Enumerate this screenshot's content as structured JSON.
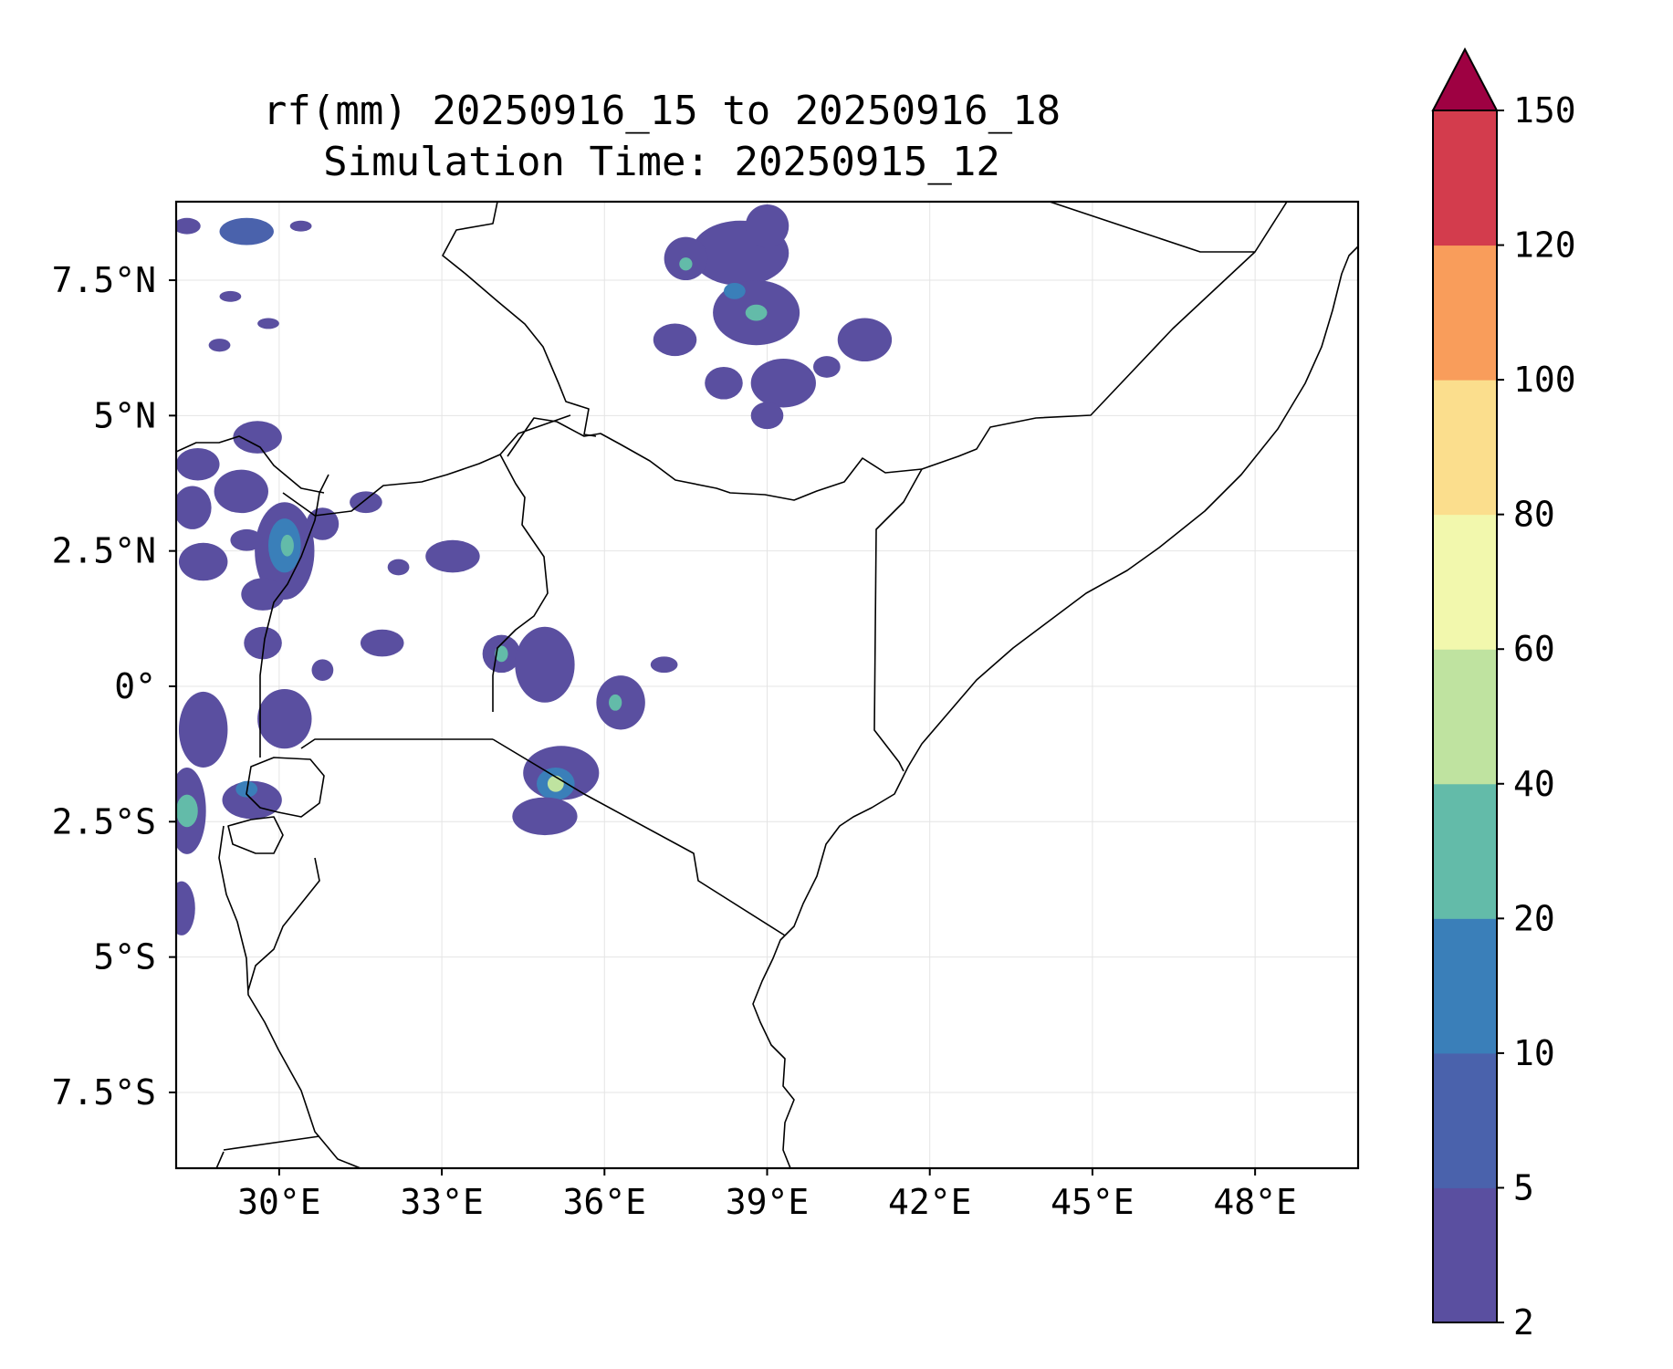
{
  "title_line1": "rf(mm) 20250916_15 to 20250916_18",
  "title_line2": "Simulation Time: 20250915_12",
  "map_extent": {
    "lon_min": 28.1,
    "lon_max": 49.9,
    "lat_min": -8.9,
    "lat_max": 8.95
  },
  "x_ticks": [
    {
      "lon": 30,
      "label": "30°E"
    },
    {
      "lon": 33,
      "label": "33°E"
    },
    {
      "lon": 36,
      "label": "36°E"
    },
    {
      "lon": 39,
      "label": "39°E"
    },
    {
      "lon": 42,
      "label": "42°E"
    },
    {
      "lon": 45,
      "label": "45°E"
    },
    {
      "lon": 48,
      "label": "48°E"
    }
  ],
  "y_ticks": [
    {
      "lat": 7.5,
      "label": "7.5°N"
    },
    {
      "lat": 5,
      "label": "5°N"
    },
    {
      "lat": 2.5,
      "label": "2.5°N"
    },
    {
      "lat": 0,
      "label": "0°"
    },
    {
      "lat": -2.5,
      "label": "2.5°S"
    },
    {
      "lat": -5,
      "label": "5°S"
    },
    {
      "lat": -7.5,
      "label": "7.5°S"
    }
  ],
  "colorbar": {
    "levels": [
      "2",
      "5",
      "10",
      "20",
      "40",
      "60",
      "80",
      "100",
      "120",
      "150"
    ],
    "colors": [
      "#5a4fa0",
      "#4a62ac",
      "#3a7fb9",
      "#63bba9",
      "#bfe3a0",
      "#f2f8ad",
      "#fbde8d",
      "#f99d5b",
      "#d33c4d"
    ],
    "extend_color": "#9e0142"
  },
  "rain_blobs": [
    {
      "lon": 29.4,
      "lat": 8.4,
      "rx": 0.5,
      "ry": 0.25,
      "level": 1
    },
    {
      "lon": 28.3,
      "lat": 8.5,
      "rx": 0.25,
      "ry": 0.15,
      "level": 0
    },
    {
      "lon": 30.4,
      "lat": 8.5,
      "rx": 0.2,
      "ry": 0.1,
      "level": 0
    },
    {
      "lon": 29.1,
      "lat": 7.2,
      "rx": 0.2,
      "ry": 0.1,
      "level": 0
    },
    {
      "lon": 29.8,
      "lat": 6.7,
      "rx": 0.2,
      "ry": 0.1,
      "level": 0
    },
    {
      "lon": 28.9,
      "lat": 6.3,
      "rx": 0.2,
      "ry": 0.12,
      "level": 0
    },
    {
      "lon": 29.6,
      "lat": 4.6,
      "rx": 0.45,
      "ry": 0.3,
      "level": 0
    },
    {
      "lon": 28.5,
      "lat": 4.1,
      "rx": 0.4,
      "ry": 0.3,
      "level": 0
    },
    {
      "lon": 28.4,
      "lat": 3.3,
      "rx": 0.35,
      "ry": 0.4,
      "level": 0
    },
    {
      "lon": 29.3,
      "lat": 3.6,
      "rx": 0.5,
      "ry": 0.4,
      "level": 0
    },
    {
      "lon": 30.1,
      "lat": 2.5,
      "rx": 0.55,
      "ry": 0.9,
      "level": 0
    },
    {
      "lon": 30.1,
      "lat": 2.6,
      "rx": 0.3,
      "ry": 0.5,
      "level": 2
    },
    {
      "lon": 30.15,
      "lat": 2.6,
      "rx": 0.12,
      "ry": 0.2,
      "level": 3
    },
    {
      "lon": 29.4,
      "lat": 2.7,
      "rx": 0.3,
      "ry": 0.2,
      "level": 0
    },
    {
      "lon": 28.6,
      "lat": 2.3,
      "rx": 0.45,
      "ry": 0.35,
      "level": 0
    },
    {
      "lon": 29.7,
      "lat": 1.7,
      "rx": 0.4,
      "ry": 0.3,
      "level": 0
    },
    {
      "lon": 29.7,
      "lat": 0.8,
      "rx": 0.35,
      "ry": 0.3,
      "level": 0
    },
    {
      "lon": 30.8,
      "lat": 3.0,
      "rx": 0.3,
      "ry": 0.3,
      "level": 0
    },
    {
      "lon": 31.6,
      "lat": 3.4,
      "rx": 0.3,
      "ry": 0.2,
      "level": 0
    },
    {
      "lon": 33.2,
      "lat": 2.4,
      "rx": 0.5,
      "ry": 0.3,
      "level": 0
    },
    {
      "lon": 32.2,
      "lat": 2.2,
      "rx": 0.2,
      "ry": 0.15,
      "level": 0
    },
    {
      "lon": 31.9,
      "lat": 0.8,
      "rx": 0.4,
      "ry": 0.25,
      "level": 0
    },
    {
      "lon": 30.8,
      "lat": 0.3,
      "rx": 0.2,
      "ry": 0.2,
      "level": 0
    },
    {
      "lon": 30.1,
      "lat": -0.6,
      "rx": 0.5,
      "ry": 0.55,
      "level": 0
    },
    {
      "lon": 28.6,
      "lat": -0.8,
      "rx": 0.45,
      "ry": 0.7,
      "level": 0
    },
    {
      "lon": 28.3,
      "lat": -2.3,
      "rx": 0.35,
      "ry": 0.8,
      "level": 0
    },
    {
      "lon": 28.3,
      "lat": -2.3,
      "rx": 0.2,
      "ry": 0.3,
      "level": 3
    },
    {
      "lon": 29.5,
      "lat": -2.1,
      "rx": 0.55,
      "ry": 0.35,
      "level": 0
    },
    {
      "lon": 29.4,
      "lat": -1.9,
      "rx": 0.2,
      "ry": 0.15,
      "level": 2
    },
    {
      "lon": 28.2,
      "lat": -4.1,
      "rx": 0.25,
      "ry": 0.5,
      "level": 0
    },
    {
      "lon": 34.1,
      "lat": 0.6,
      "rx": 0.35,
      "ry": 0.35,
      "level": 0
    },
    {
      "lon": 34.1,
      "lat": 0.6,
      "rx": 0.12,
      "ry": 0.15,
      "level": 3
    },
    {
      "lon": 34.9,
      "lat": 0.4,
      "rx": 0.55,
      "ry": 0.7,
      "level": 0
    },
    {
      "lon": 36.3,
      "lat": -0.3,
      "rx": 0.45,
      "ry": 0.5,
      "level": 0
    },
    {
      "lon": 36.2,
      "lat": -0.3,
      "rx": 0.12,
      "ry": 0.15,
      "level": 3
    },
    {
      "lon": 37.1,
      "lat": 0.4,
      "rx": 0.25,
      "ry": 0.15,
      "level": 0
    },
    {
      "lon": 35.2,
      "lat": -1.6,
      "rx": 0.7,
      "ry": 0.5,
      "level": 0
    },
    {
      "lon": 35.1,
      "lat": -1.8,
      "rx": 0.35,
      "ry": 0.3,
      "level": 2
    },
    {
      "lon": 35.1,
      "lat": -1.8,
      "rx": 0.15,
      "ry": 0.15,
      "level": 4
    },
    {
      "lon": 34.9,
      "lat": -2.4,
      "rx": 0.6,
      "ry": 0.35,
      "level": 0
    },
    {
      "lon": 38.5,
      "lat": 8.0,
      "rx": 0.9,
      "ry": 0.6,
      "level": 0
    },
    {
      "lon": 37.5,
      "lat": 7.9,
      "rx": 0.4,
      "ry": 0.4,
      "level": 0
    },
    {
      "lon": 37.5,
      "lat": 7.8,
      "rx": 0.12,
      "ry": 0.12,
      "level": 3
    },
    {
      "lon": 39.0,
      "lat": 8.5,
      "rx": 0.4,
      "ry": 0.4,
      "level": 0
    },
    {
      "lon": 38.8,
      "lat": 6.9,
      "rx": 0.8,
      "ry": 0.6,
      "level": 0
    },
    {
      "lon": 38.8,
      "lat": 6.9,
      "rx": 0.2,
      "ry": 0.15,
      "level": 3
    },
    {
      "lon": 38.4,
      "lat": 7.3,
      "rx": 0.2,
      "ry": 0.15,
      "level": 2
    },
    {
      "lon": 37.3,
      "lat": 6.4,
      "rx": 0.4,
      "ry": 0.3,
      "level": 0
    },
    {
      "lon": 40.8,
      "lat": 6.4,
      "rx": 0.5,
      "ry": 0.4,
      "level": 0
    },
    {
      "lon": 39.3,
      "lat": 5.6,
      "rx": 0.6,
      "ry": 0.45,
      "level": 0
    },
    {
      "lon": 38.2,
      "lat": 5.6,
      "rx": 0.35,
      "ry": 0.3,
      "level": 0
    },
    {
      "lon": 39.0,
      "lat": 5.0,
      "rx": 0.3,
      "ry": 0.25,
      "level": 0
    },
    {
      "lon": 40.1,
      "lat": 5.9,
      "rx": 0.25,
      "ry": 0.2,
      "level": 0
    }
  ]
}
